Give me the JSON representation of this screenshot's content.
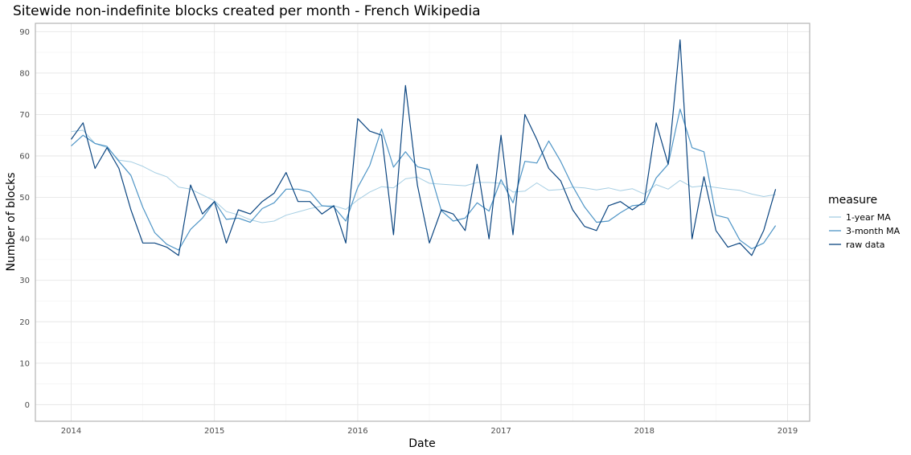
{
  "chart_data": {
    "type": "line",
    "title": "Sitewide non-indefinite blocks created per month - French Wikipedia",
    "xlabel": "Date",
    "ylabel": "Number of blocks",
    "x_start": "2014-01",
    "x_tick_labels": [
      "2014",
      "2015",
      "2016",
      "2017",
      "2018",
      "2019"
    ],
    "y_ticks": [
      0,
      10,
      20,
      30,
      40,
      50,
      60,
      70,
      80,
      90
    ],
    "ylim": [
      -4,
      92
    ],
    "grid": true,
    "legend_title": "measure",
    "legend_placement": "right",
    "series": [
      {
        "name": "1-year MA",
        "color": "#a6cee3",
        "values": [
          65.9,
          66.2,
          63.0,
          62.0,
          59.0,
          58.6,
          57.5,
          56.0,
          55.0,
          52.5,
          52.0,
          50.6,
          49.2,
          46.6,
          45.8,
          44.6,
          43.9,
          44.3,
          45.7,
          46.5,
          47.3,
          47.9,
          48.0,
          47.1,
          49.4,
          51.3,
          52.6,
          52.3,
          54.5,
          54.9,
          53.4,
          53.2,
          53.0,
          52.8,
          53.6,
          53.6,
          53.4,
          51.3,
          51.5,
          53.5,
          51.7,
          51.9,
          52.5,
          52.3,
          51.8,
          52.3,
          51.6,
          52.1,
          50.8,
          53.1,
          52.0,
          54.1,
          52.5,
          52.8,
          52.4,
          52.0,
          51.7,
          50.8,
          50.2,
          50.7
        ]
      },
      {
        "name": "3-month MA",
        "color": "#4f95c6",
        "values": [
          62.4,
          65.0,
          63.0,
          62.3,
          58.7,
          55.3,
          47.6,
          41.5,
          38.7,
          37.3,
          42.3,
          45.0,
          49.0,
          44.7,
          45.0,
          44.0,
          47.3,
          48.7,
          52.0,
          52.0,
          51.3,
          48.0,
          47.7,
          44.3,
          52.4,
          57.7,
          66.5,
          57.3,
          61.0,
          57.4,
          56.7,
          46.8,
          44.3,
          45.0,
          48.7,
          46.7,
          54.3,
          48.7,
          58.7,
          58.3,
          63.6,
          58.7,
          52.7,
          47.7,
          44.0,
          44.3,
          46.3,
          48.0,
          48.3,
          54.7,
          58.0,
          71.3,
          62.0,
          61.0,
          45.7,
          45.0,
          39.7,
          37.6,
          39.0,
          43.2
        ]
      },
      {
        "name": "raw data",
        "color": "#0b4580",
        "values": [
          64,
          68,
          57,
          62,
          57,
          47,
          39,
          39,
          38,
          36,
          53,
          46,
          49,
          39,
          47,
          46,
          49,
          51,
          56,
          49,
          49,
          46,
          48,
          39,
          69,
          66,
          65,
          41,
          77,
          53,
          39,
          47,
          46,
          42,
          58,
          40,
          65,
          41,
          70,
          64,
          57,
          54,
          47,
          43,
          42,
          48,
          49,
          47,
          49,
          68,
          58,
          88,
          40,
          55,
          42,
          38,
          39,
          36,
          42,
          52
        ]
      }
    ]
  }
}
